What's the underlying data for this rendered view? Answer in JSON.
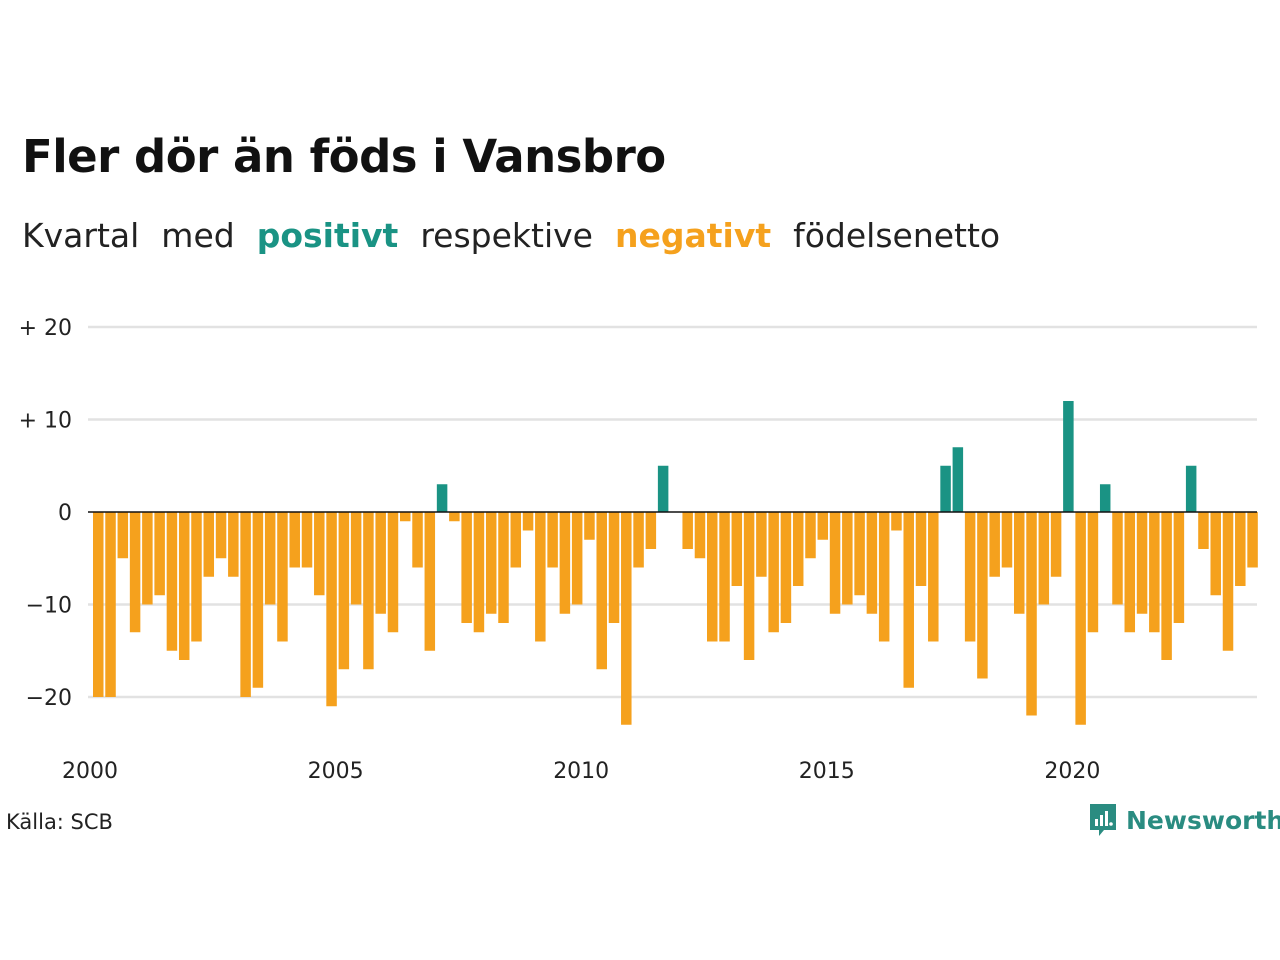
{
  "title": "Fler dör än föds i Vansbro",
  "subtitle": {
    "w1": "Kvartal",
    "w2": "med",
    "positive": "positivt",
    "w3": "respektive",
    "negative": "negativt",
    "w4": "födelsenetto"
  },
  "colors": {
    "positive": "#1a9384",
    "negative": "#f5a11d",
    "grid": "#e2e2e2",
    "zero_line": "#111111"
  },
  "source": "Källa: SCB",
  "brand": {
    "name": "Newsworthy",
    "icon": "newsworthy-logo-icon"
  },
  "chart_data": {
    "type": "bar",
    "x_unit": "quarter",
    "x_start": "2000 Q1",
    "xticks": [
      "2000",
      "2005",
      "2010",
      "2015",
      "2020"
    ],
    "yticks": [
      "+ 20",
      "+ 10",
      "0",
      "−10",
      "−20"
    ],
    "ytick_values": [
      20,
      10,
      0,
      -10,
      -20
    ],
    "ylim": [
      -25,
      22
    ],
    "grid": true,
    "xlabel": "",
    "ylabel": "",
    "values": [
      -20,
      -20,
      -5,
      -13,
      -10,
      -9,
      -15,
      -16,
      -14,
      -7,
      -5,
      -7,
      -20,
      -19,
      -10,
      -14,
      -6,
      -6,
      -9,
      -21,
      -17,
      -10,
      -17,
      -11,
      -13,
      -1,
      -6,
      -15,
      3,
      -1,
      -12,
      -13,
      -11,
      -12,
      -6,
      -2,
      -14,
      -6,
      -11,
      -10,
      -3,
      -17,
      -12,
      -23,
      -6,
      -4,
      5,
      0,
      -4,
      -5,
      -14,
      -14,
      -8,
      -16,
      -7,
      -13,
      -12,
      -8,
      -5,
      -3,
      -11,
      -10,
      -9,
      -11,
      -14,
      -2,
      -19,
      -8,
      -14,
      5,
      7,
      -14,
      -18,
      -7,
      -6,
      -11,
      -22,
      -10,
      -7,
      12,
      -23,
      -13,
      3,
      -10,
      -13,
      -11,
      -13,
      -16,
      -12,
      5,
      -4,
      -9,
      -15,
      -8,
      -6
    ]
  }
}
